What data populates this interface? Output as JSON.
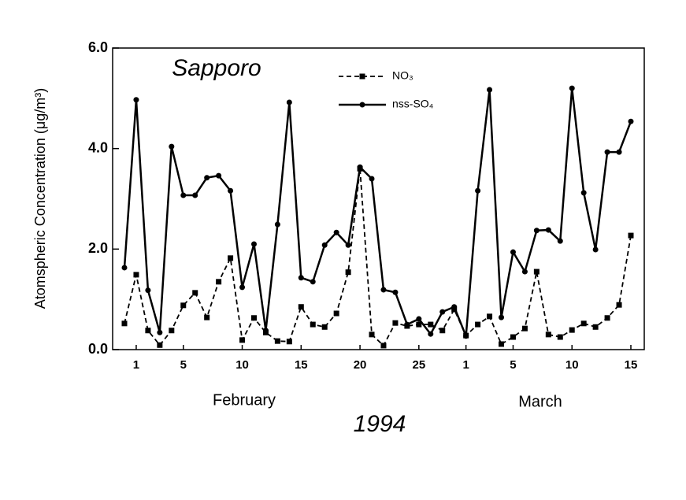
{
  "chart_data": {
    "type": "line",
    "title": "Sapporo",
    "y_label": "Atomspheric Concentration (μg/m³)",
    "month_labels": [
      "February",
      "March"
    ],
    "year_label": "1994",
    "categories": [
      null,
      "1",
      null,
      null,
      null,
      "5",
      null,
      null,
      null,
      null,
      "10",
      null,
      null,
      null,
      null,
      "15",
      null,
      null,
      null,
      null,
      "20",
      null,
      null,
      null,
      null,
      "25",
      null,
      null,
      null,
      "1",
      null,
      null,
      null,
      "5",
      null,
      null,
      null,
      null,
      "10",
      null,
      null,
      null,
      null,
      "15"
    ],
    "series": [
      {
        "name": "NO₃",
        "color": "#000000",
        "dashed": true,
        "marker": "square",
        "values": [
          0.52,
          1.49,
          0.38,
          0.09,
          0.38,
          0.88,
          1.13,
          0.64,
          1.35,
          1.82,
          0.19,
          0.63,
          0.34,
          0.17,
          0.16,
          0.85,
          0.5,
          0.45,
          0.72,
          1.54,
          3.6,
          0.3,
          0.08,
          0.53,
          0.47,
          0.5,
          0.5,
          0.38,
          0.8,
          0.28,
          0.5,
          0.66,
          0.11,
          0.25,
          0.42,
          1.55,
          0.3,
          0.25,
          0.39,
          0.52,
          0.45,
          0.63,
          0.89,
          2.27
        ]
      },
      {
        "name": "nss-SO₄",
        "color": "#000000",
        "dashed": false,
        "marker": "circle",
        "values": [
          1.63,
          4.97,
          1.18,
          0.34,
          4.04,
          3.07,
          3.07,
          3.42,
          3.46,
          3.16,
          1.24,
          2.1,
          0.38,
          2.49,
          4.92,
          1.43,
          1.35,
          2.08,
          2.33,
          2.08,
          3.63,
          3.4,
          1.19,
          1.14,
          0.5,
          0.61,
          0.31,
          0.75,
          0.85,
          0.27,
          3.16,
          5.17,
          0.64,
          1.94,
          1.55,
          2.37,
          2.38,
          2.16,
          5.2,
          3.12,
          1.99,
          3.93,
          3.93,
          4.54
        ]
      }
    ],
    "ylim": [
      0,
      6
    ],
    "yticks": [
      {
        "value": 0,
        "label": "0.0"
      },
      {
        "value": 2,
        "label": "2.0"
      },
      {
        "value": 4,
        "label": "4.0"
      },
      {
        "value": 6,
        "label": "6.0"
      }
    ],
    "grid": false
  }
}
